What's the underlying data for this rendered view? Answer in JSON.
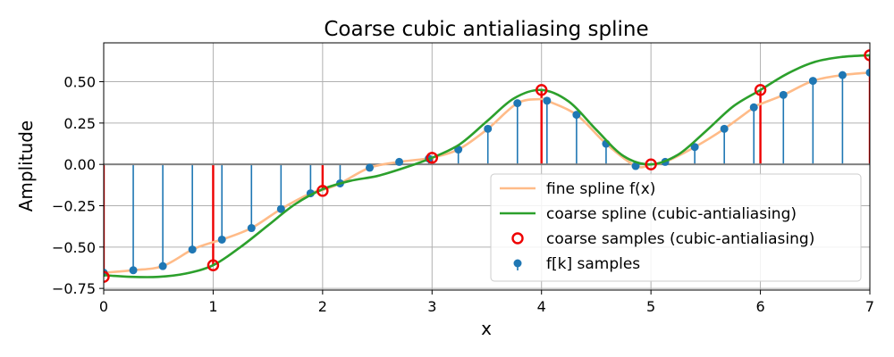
{
  "chart_data": {
    "type": "line",
    "title": "Coarse cubic antialiasing spline",
    "xlabel": "x",
    "ylabel": "Amplitude",
    "xlim": [
      0,
      7
    ],
    "ylim": [
      -0.76,
      0.735
    ],
    "xticks": [
      0,
      1,
      2,
      3,
      4,
      5,
      6,
      7
    ],
    "xtick_labels": [
      "0",
      "1",
      "2",
      "3",
      "4",
      "5",
      "6",
      "7"
    ],
    "yticks": [
      -0.75,
      -0.5,
      -0.25,
      0.0,
      0.25,
      0.5
    ],
    "ytick_labels": [
      "−0.75",
      "−0.50",
      "−0.25",
      "0.00",
      "0.25",
      "0.50"
    ],
    "grid": true,
    "legend_position": "lower-right",
    "legend": [
      {
        "label": "fine spline f(x)",
        "marker": "line",
        "color": "#ffbb88"
      },
      {
        "label": "coarse spline (cubic-antialiasing)",
        "marker": "line",
        "color": "#2ca02c"
      },
      {
        "label": "coarse samples (cubic-antialiasing)",
        "marker": "open-circle",
        "color": "#ee0000"
      },
      {
        "label": "f[k] samples",
        "marker": "stem",
        "color": "#1f77b4"
      }
    ],
    "series": [
      {
        "name": "fine spline f(x)",
        "kind": "line",
        "color": "#ffbb88",
        "x": [
          0,
          0.27,
          0.54,
          0.81,
          1.0,
          1.08,
          1.35,
          1.62,
          1.89,
          2.0,
          2.16,
          2.43,
          2.7,
          2.97,
          3.0,
          3.24,
          3.51,
          3.78,
          4.0,
          4.05,
          4.32,
          4.59,
          4.86,
          5.0,
          5.13,
          5.4,
          5.67,
          5.94,
          6.0,
          6.21,
          6.48,
          6.75,
          7.0
        ],
        "y": [
          -0.655,
          -0.64,
          -0.615,
          -0.515,
          -0.47,
          -0.455,
          -0.385,
          -0.27,
          -0.175,
          -0.155,
          -0.115,
          -0.02,
          0.015,
          0.035,
          0.04,
          0.09,
          0.215,
          0.37,
          0.395,
          0.385,
          0.3,
          0.125,
          -0.01,
          0.0,
          0.015,
          0.105,
          0.215,
          0.345,
          0.365,
          0.42,
          0.505,
          0.54,
          0.555
        ]
      },
      {
        "name": "coarse spline (cubic-antialiasing)",
        "kind": "line",
        "color": "#2ca02c",
        "x": [
          0,
          0.25,
          0.5,
          0.75,
          1.0,
          1.25,
          1.5,
          1.75,
          2.0,
          2.25,
          2.5,
          2.75,
          3.0,
          3.25,
          3.5,
          3.75,
          4.0,
          4.25,
          4.5,
          4.75,
          5.0,
          5.25,
          5.5,
          5.75,
          6.0,
          6.25,
          6.5,
          6.75,
          7.0
        ],
        "y": [
          -0.67,
          -0.68,
          -0.68,
          -0.66,
          -0.61,
          -0.5,
          -0.37,
          -0.24,
          -0.15,
          -0.1,
          -0.07,
          -0.02,
          0.04,
          0.12,
          0.26,
          0.4,
          0.45,
          0.38,
          0.21,
          0.05,
          0.0,
          0.06,
          0.2,
          0.35,
          0.45,
          0.55,
          0.62,
          0.65,
          0.66
        ]
      },
      {
        "name": "coarse samples (cubic-antialiasing)",
        "kind": "stem-open",
        "color": "#ee0000",
        "x": [
          0,
          1,
          2,
          3,
          4,
          5,
          6,
          7
        ],
        "y": [
          -0.68,
          -0.61,
          -0.16,
          0.04,
          0.45,
          0.0,
          0.45,
          0.66
        ]
      },
      {
        "name": "f[k] samples",
        "kind": "stem",
        "color": "#1f77b4",
        "x": [
          0,
          0.27,
          0.54,
          0.81,
          1.08,
          1.35,
          1.62,
          1.89,
          2.16,
          2.43,
          2.7,
          2.97,
          3.24,
          3.51,
          3.78,
          4.05,
          4.32,
          4.59,
          4.86,
          5.13,
          5.4,
          5.67,
          5.94,
          6.21,
          6.48,
          6.75,
          7.0
        ],
        "y": [
          -0.655,
          -0.64,
          -0.615,
          -0.515,
          -0.455,
          -0.385,
          -0.27,
          -0.175,
          -0.115,
          -0.02,
          0.015,
          0.035,
          0.09,
          0.215,
          0.37,
          0.385,
          0.3,
          0.125,
          -0.01,
          0.015,
          0.105,
          0.215,
          0.345,
          0.42,
          0.505,
          0.54,
          0.555
        ]
      }
    ]
  }
}
